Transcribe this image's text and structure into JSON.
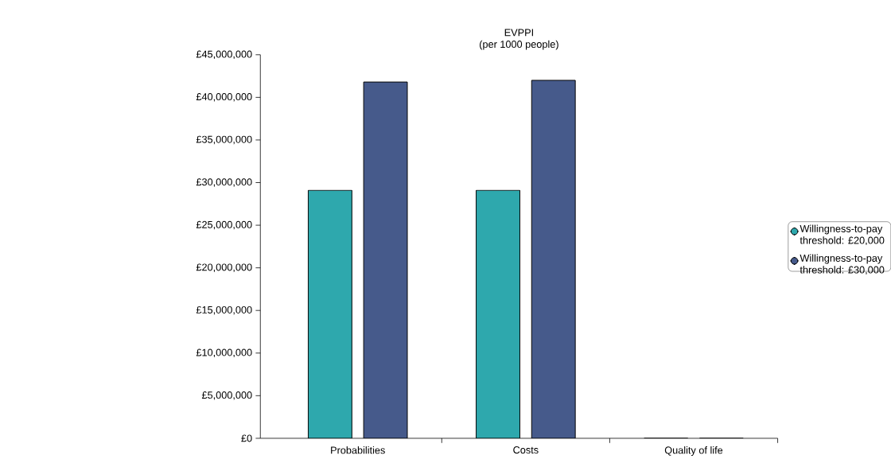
{
  "chart_data": {
    "type": "bar",
    "title": "EVPPI",
    "subtitle": "(per 1000 people)",
    "categories": [
      "Probabilities",
      "Costs",
      "Quality of life"
    ],
    "series": [
      {
        "name": "Willingness-to-pay threshold: £20,000",
        "color": "#2ea8ad",
        "values": [
          29100000,
          29100000,
          0
        ]
      },
      {
        "name": "Willingness-to-pay threshold: £30,000",
        "color": "#465a8b",
        "values": [
          41800000,
          42000000,
          0
        ]
      }
    ],
    "ylim": [
      0,
      45000000
    ],
    "yticks": [
      {
        "value": 0,
        "label": "£0"
      },
      {
        "value": 5000000,
        "label": "£5,000,000"
      },
      {
        "value": 10000000,
        "label": "£10,000,000"
      },
      {
        "value": 15000000,
        "label": "£15,000,000"
      },
      {
        "value": 20000000,
        "label": "£20,000,000"
      },
      {
        "value": 25000000,
        "label": "£25,000,000"
      },
      {
        "value": 30000000,
        "label": "£30,000,000"
      },
      {
        "value": 35000000,
        "label": "£35,000,000"
      },
      {
        "value": 40000000,
        "label": "£40,000,000"
      },
      {
        "value": 45000000,
        "label": "£45,000,000"
      }
    ],
    "grid": false,
    "legend": "right"
  }
}
